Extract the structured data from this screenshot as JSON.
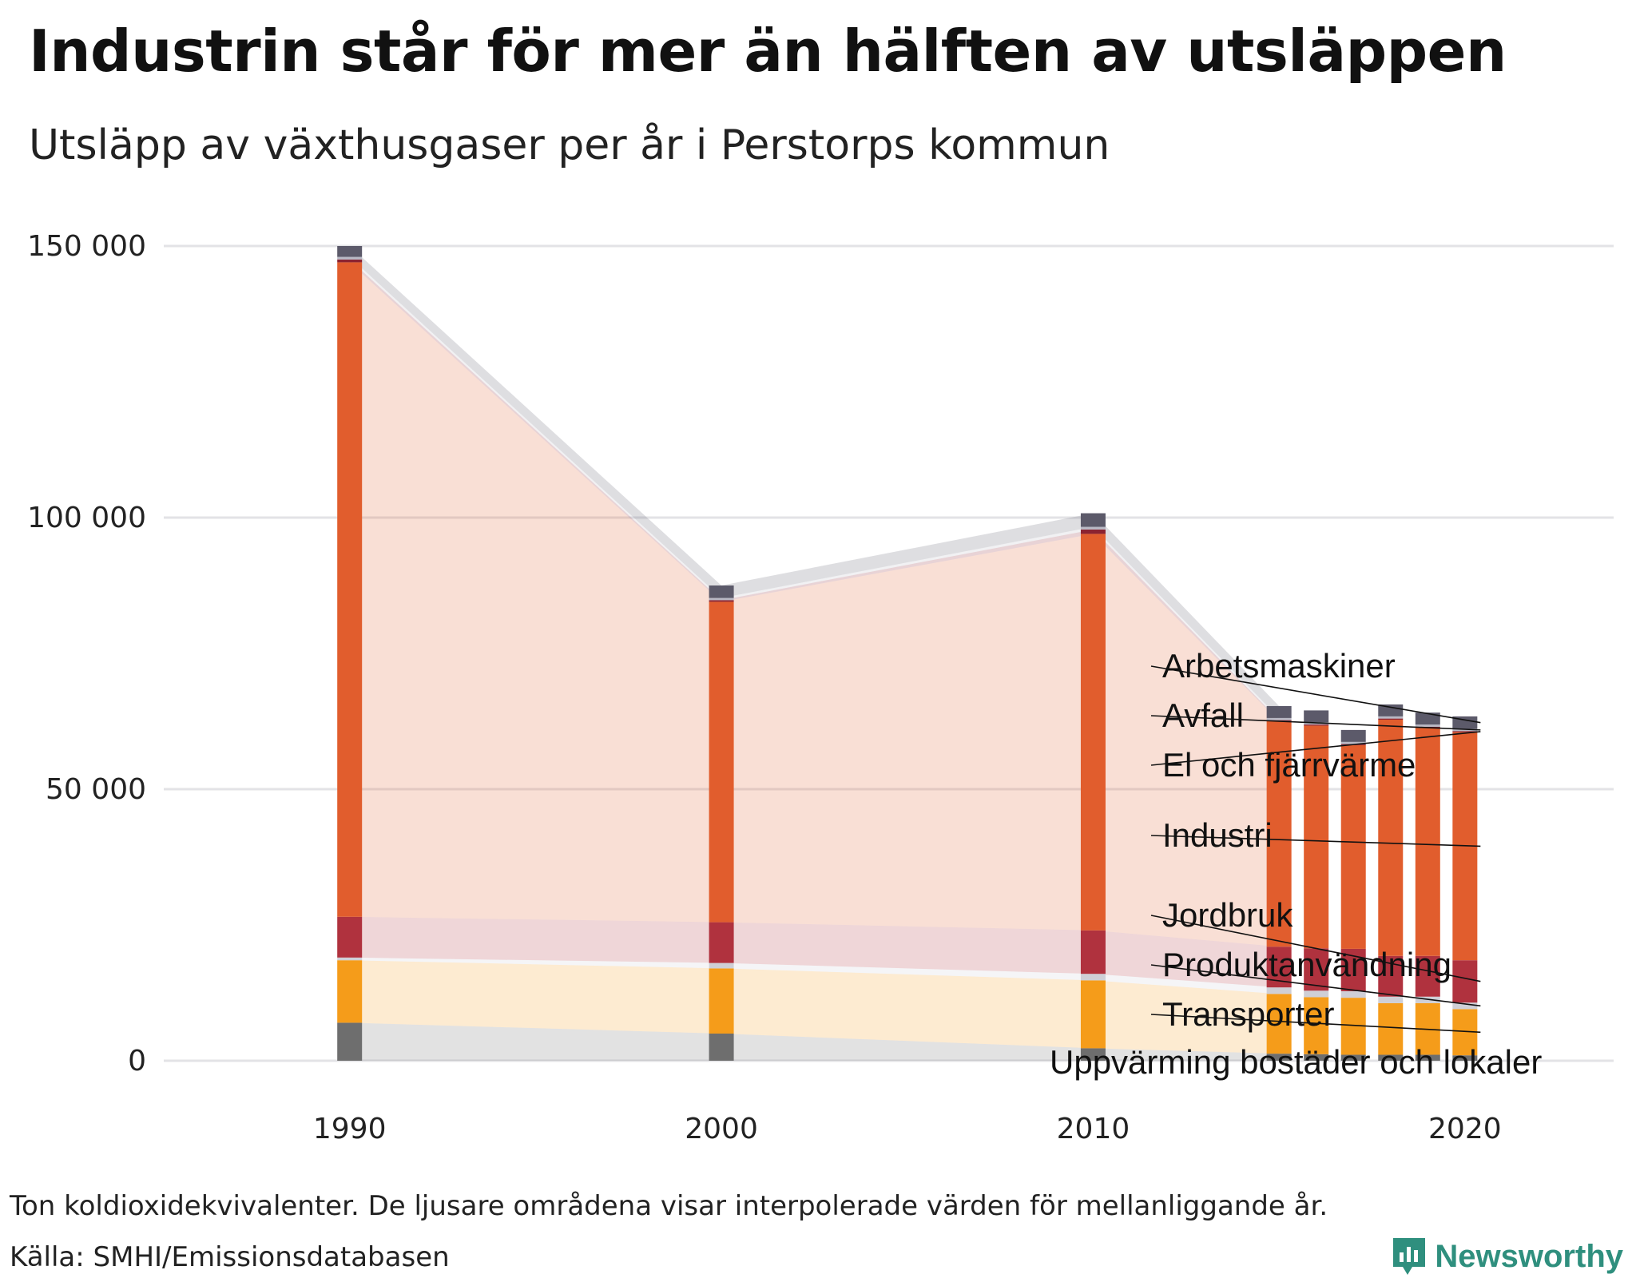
{
  "header": {
    "title": "Industrin står för mer än hälften av utsläppen",
    "subtitle": "Utsläpp av växthusgaser per år i Perstorps kommun"
  },
  "footer": {
    "note": "Ton koldioxidekvivalenter. De ljusare områdena visar interpolerade värden för mellanliggande år.",
    "source": "Källa: SMHI/Emissionsdatabasen",
    "brand": "Newsworthy"
  },
  "colors": {
    "uppvarmning": "#6e6e6e",
    "transporter": "#f59c1a",
    "produktanvandning": "#cfcfd6",
    "jordbruk": "#b0323e",
    "industri": "#e15d2d",
    "el": "#8b2331",
    "avfall": "#b8b8c4",
    "arbetsmaskiner": "#5c5a6a",
    "grid": "#e3e3e6",
    "brand": "#2f8f7e"
  },
  "chart_data": {
    "type": "bar",
    "stacked": true,
    "title": "Industrin står för mer än hälften av utsläppen",
    "subtitle": "Utsläpp av växthusgaser per år i Perstorps kommun",
    "unit": "Ton koldioxidekvivalenter",
    "ylim": [
      0,
      150000
    ],
    "yticks": [
      0,
      50000,
      100000,
      150000
    ],
    "ytick_labels": [
      "0",
      "50 000",
      "100 000",
      "150 000"
    ],
    "xlim": [
      1985,
      2024
    ],
    "xticks": [
      1990,
      2000,
      2010,
      2020
    ],
    "xtick_labels": [
      "1990",
      "2000",
      "2010",
      "2020"
    ],
    "years": [
      1990,
      2000,
      2010,
      2015,
      2016,
      2017,
      2018,
      2019,
      2020
    ],
    "interpolated_areas_between": [
      1990,
      2000,
      2010,
      2015
    ],
    "series": [
      {
        "key": "uppvarmning",
        "name": "Uppvärming bostäder och lokaler",
        "values": [
          7000,
          5000,
          2300,
          1300,
          1200,
          1100,
          1100,
          1100,
          1000
        ]
      },
      {
        "key": "transporter",
        "name": "Transporter",
        "values": [
          11500,
          12000,
          12500,
          11000,
          10500,
          10500,
          9500,
          9500,
          8500
        ]
      },
      {
        "key": "produktanvandning",
        "name": "Produktanvändning",
        "values": [
          500,
          1000,
          1200,
          1200,
          1200,
          1200,
          1200,
          1200,
          1200
        ]
      },
      {
        "key": "jordbruk",
        "name": "Jordbruk",
        "values": [
          7500,
          7500,
          8000,
          7500,
          7800,
          7800,
          7500,
          7500,
          7800
        ]
      },
      {
        "key": "industri",
        "name": "Industri",
        "values": [
          120500,
          59000,
          73000,
          41500,
          41000,
          37500,
          43500,
          42000,
          42000
        ]
      },
      {
        "key": "el",
        "name": "El och fjärrvärme",
        "values": [
          500,
          300,
          800,
          200,
          200,
          200,
          200,
          200,
          200
        ]
      },
      {
        "key": "avfall",
        "name": "Avfall",
        "values": [
          500,
          400,
          500,
          400,
          400,
          400,
          400,
          400,
          400
        ]
      },
      {
        "key": "arbetsmaskiner",
        "name": "Arbetsmaskiner",
        "values": [
          2000,
          2300,
          2500,
          2200,
          2200,
          2200,
          2200,
          2200,
          2300
        ]
      }
    ]
  }
}
